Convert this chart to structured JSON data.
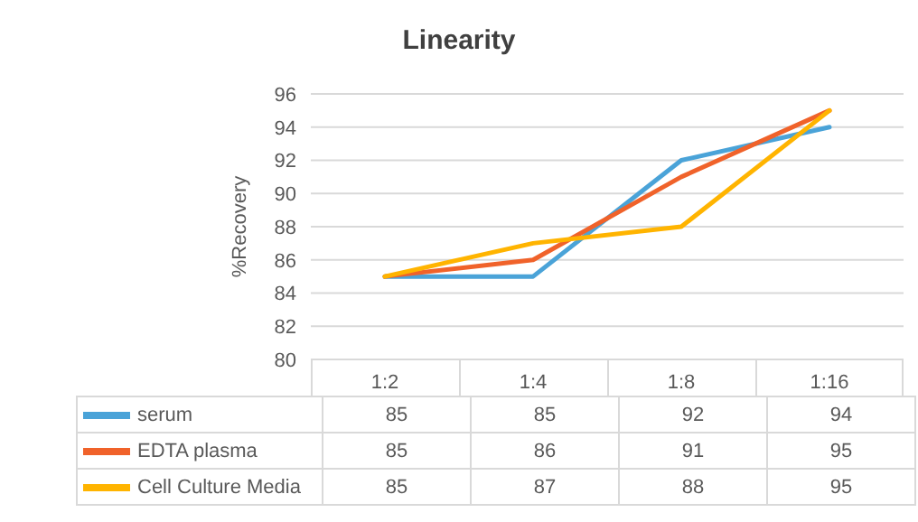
{
  "chart_data": {
    "type": "line",
    "title": "Linearity",
    "ylabel": "%Recovery",
    "categories": [
      "1:2",
      "1:4",
      "1:8",
      "1:16"
    ],
    "series": [
      {
        "name": "serum",
        "color": "#4aa3d8",
        "values": [
          85,
          85,
          92,
          94
        ]
      },
      {
        "name": "EDTA plasma",
        "color": "#f0622a",
        "values": [
          85,
          86,
          91,
          95
        ]
      },
      {
        "name": "Cell Culture Media",
        "color": "#ffb400",
        "values": [
          85,
          87,
          88,
          95
        ]
      }
    ],
    "ylim": [
      80,
      96
    ],
    "yticks": [
      80,
      82,
      84,
      86,
      88,
      90,
      92,
      94,
      96
    ],
    "grid": "y",
    "legend": "bottom",
    "data_labels": true,
    "marker": "none",
    "line_style": "solid"
  }
}
